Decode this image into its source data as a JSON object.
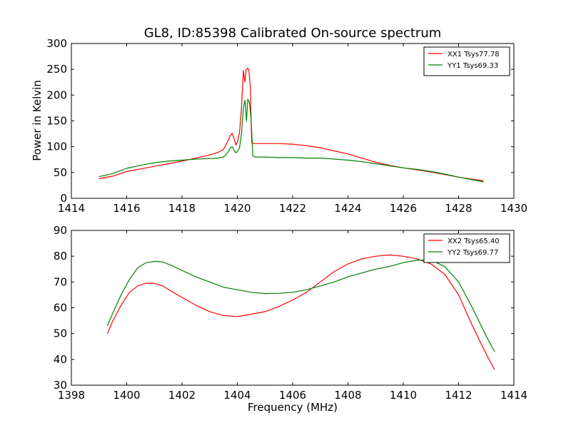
{
  "chart_data": [
    {
      "type": "line",
      "title": "GL8, ID:85398 Calibrated On-source spectrum",
      "xlabel": "",
      "ylabel": "Power in Kelvin",
      "xlim": [
        1414,
        1430
      ],
      "ylim": [
        0,
        300
      ],
      "xticks": [
        1414,
        1416,
        1418,
        1420,
        1422,
        1424,
        1426,
        1428,
        1430
      ],
      "yticks": [
        0,
        50,
        100,
        150,
        200,
        250,
        300
      ],
      "grid": false,
      "legend_position": "top-right",
      "series": [
        {
          "name": "XX1 Tsys77.78",
          "color": "#ff0000",
          "points": [
            [
              1415,
              38
            ],
            [
              1415.5,
              43
            ],
            [
              1416,
              52
            ],
            [
              1416.5,
              57
            ],
            [
              1417,
              62
            ],
            [
              1417.5,
              67
            ],
            [
              1418,
              72
            ],
            [
              1418.5,
              78
            ],
            [
              1419,
              84
            ],
            [
              1419.3,
              89
            ],
            [
              1419.5,
              95
            ],
            [
              1419.65,
              110
            ],
            [
              1419.75,
              122
            ],
            [
              1419.82,
              126
            ],
            [
              1419.9,
              112
            ],
            [
              1419.95,
              103
            ],
            [
              1420.02,
              112
            ],
            [
              1420.08,
              128
            ],
            [
              1420.15,
              175
            ],
            [
              1420.22,
              248
            ],
            [
              1420.27,
              225
            ],
            [
              1420.32,
              250
            ],
            [
              1420.38,
              252
            ],
            [
              1420.42,
              248
            ],
            [
              1420.47,
              215
            ],
            [
              1420.52,
              108
            ],
            [
              1420.6,
              106
            ],
            [
              1421,
              106
            ],
            [
              1421.5,
              106
            ],
            [
              1422,
              105
            ],
            [
              1422.5,
              102
            ],
            [
              1423,
              98
            ],
            [
              1423.5,
              92
            ],
            [
              1424,
              86
            ],
            [
              1424.5,
              78
            ],
            [
              1425,
              70
            ],
            [
              1425.5,
              64
            ],
            [
              1426,
              59
            ],
            [
              1426.5,
              55
            ],
            [
              1427,
              51
            ],
            [
              1427.5,
              46
            ],
            [
              1428,
              41
            ],
            [
              1428.5,
              37
            ],
            [
              1428.9,
              34
            ]
          ]
        },
        {
          "name": "YY1 Tsys69.33",
          "color": "#008000",
          "points": [
            [
              1415,
              42
            ],
            [
              1415.5,
              48
            ],
            [
              1416,
              58
            ],
            [
              1416.5,
              64
            ],
            [
              1417,
              69
            ],
            [
              1417.5,
              72
            ],
            [
              1418,
              74
            ],
            [
              1418.5,
              76
            ],
            [
              1419,
              77
            ],
            [
              1419.3,
              78
            ],
            [
              1419.5,
              80
            ],
            [
              1419.65,
              88
            ],
            [
              1419.75,
              98
            ],
            [
              1419.82,
              100
            ],
            [
              1419.9,
              92
            ],
            [
              1419.95,
              88
            ],
            [
              1420.02,
              92
            ],
            [
              1420.08,
              98
            ],
            [
              1420.15,
              125
            ],
            [
              1420.22,
              175
            ],
            [
              1420.28,
              190
            ],
            [
              1420.33,
              150
            ],
            [
              1420.38,
              192
            ],
            [
              1420.44,
              185
            ],
            [
              1420.5,
              150
            ],
            [
              1420.56,
              82
            ],
            [
              1420.65,
              80
            ],
            [
              1421,
              80
            ],
            [
              1421.5,
              79
            ],
            [
              1422,
              79
            ],
            [
              1422.5,
              78
            ],
            [
              1423,
              78
            ],
            [
              1423.5,
              76
            ],
            [
              1424,
              74
            ],
            [
              1424.5,
              71
            ],
            [
              1425,
              67
            ],
            [
              1425.5,
              63
            ],
            [
              1426,
              59
            ],
            [
              1426.5,
              56
            ],
            [
              1427,
              52
            ],
            [
              1427.5,
              47
            ],
            [
              1428,
              41
            ],
            [
              1428.5,
              36
            ],
            [
              1428.9,
              32
            ]
          ]
        }
      ]
    },
    {
      "type": "line",
      "title": "",
      "xlabel": "Frequency (MHz)",
      "ylabel": "",
      "xlim": [
        1398,
        1414
      ],
      "ylim": [
        30,
        90
      ],
      "xticks": [
        1398,
        1400,
        1402,
        1404,
        1406,
        1408,
        1410,
        1412,
        1414
      ],
      "yticks": [
        30,
        40,
        50,
        60,
        70,
        80,
        90
      ],
      "grid": false,
      "legend_position": "top-right",
      "series": [
        {
          "name": "XX2 Tsys65.40",
          "color": "#ff0000",
          "points": [
            [
              1399.3,
              50
            ],
            [
              1399.5,
              55
            ],
            [
              1399.8,
              61
            ],
            [
              1400.1,
              66
            ],
            [
              1400.4,
              68.5
            ],
            [
              1400.7,
              69.5
            ],
            [
              1401,
              69.5
            ],
            [
              1401.3,
              68.5
            ],
            [
              1401.6,
              66.5
            ],
            [
              1402,
              64
            ],
            [
              1402.5,
              61
            ],
            [
              1403,
              58.5
            ],
            [
              1403.5,
              57
            ],
            [
              1404,
              56.6
            ],
            [
              1404.5,
              57.5
            ],
            [
              1405,
              58.5
            ],
            [
              1405.5,
              60.5
            ],
            [
              1406,
              63
            ],
            [
              1406.5,
              66
            ],
            [
              1407,
              70
            ],
            [
              1407.5,
              74
            ],
            [
              1408,
              77
            ],
            [
              1408.5,
              79
            ],
            [
              1409,
              80
            ],
            [
              1409.5,
              80.5
            ],
            [
              1410,
              80
            ],
            [
              1410.5,
              79
            ],
            [
              1411,
              77
            ],
            [
              1411.5,
              73
            ],
            [
              1412,
              65
            ],
            [
              1412.5,
              53
            ],
            [
              1413,
              42
            ],
            [
              1413.3,
              36
            ]
          ]
        },
        {
          "name": "YY2 Tsys69.77",
          "color": "#008000",
          "points": [
            [
              1399.3,
              53
            ],
            [
              1399.5,
              58
            ],
            [
              1399.8,
              65
            ],
            [
              1400.1,
              71
            ],
            [
              1400.4,
              75.5
            ],
            [
              1400.7,
              77.5
            ],
            [
              1401,
              78
            ],
            [
              1401.3,
              77.8
            ],
            [
              1401.6,
              76.5
            ],
            [
              1402,
              74.5
            ],
            [
              1402.5,
              72
            ],
            [
              1403,
              70
            ],
            [
              1403.5,
              68
            ],
            [
              1404,
              67
            ],
            [
              1404.5,
              66
            ],
            [
              1405,
              65.5
            ],
            [
              1405.5,
              65.6
            ],
            [
              1406,
              66
            ],
            [
              1406.5,
              67
            ],
            [
              1407,
              68.5
            ],
            [
              1407.5,
              70
            ],
            [
              1408,
              72
            ],
            [
              1408.5,
              73.5
            ],
            [
              1409,
              75
            ],
            [
              1409.5,
              76
            ],
            [
              1410,
              77.5
            ],
            [
              1410.5,
              78.5
            ],
            [
              1411,
              78.5
            ],
            [
              1411.5,
              76
            ],
            [
              1412,
              70
            ],
            [
              1412.5,
              60
            ],
            [
              1413,
              49
            ],
            [
              1413.3,
              43
            ]
          ]
        }
      ]
    }
  ]
}
